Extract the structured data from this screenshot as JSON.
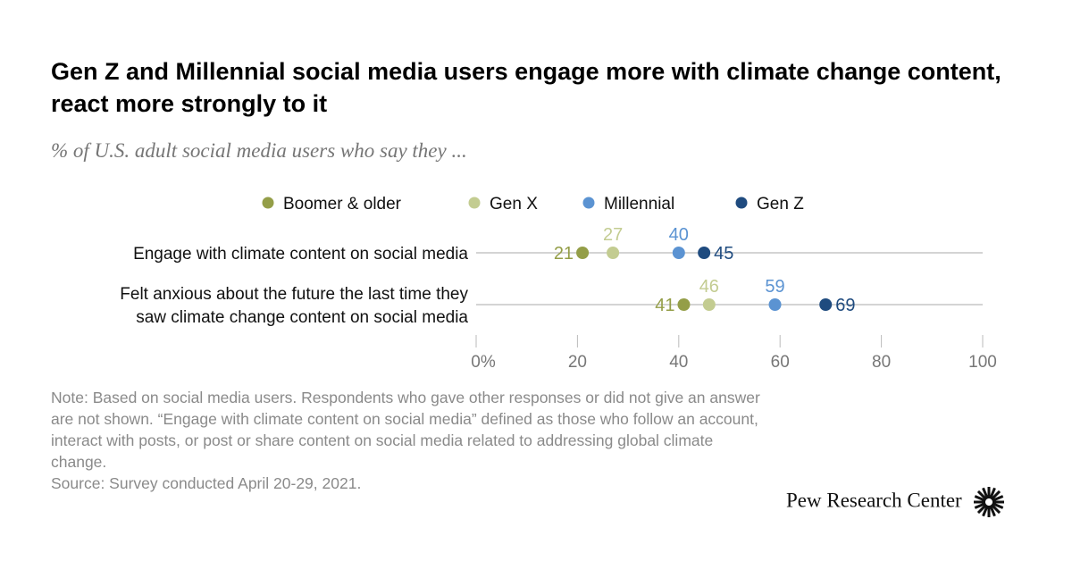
{
  "title": "Gen Z and Millennial social media users engage more with climate change content, react more strongly to it",
  "subtitle": "% of U.S. adult social media users who say they ...",
  "chart_data": {
    "type": "scatter",
    "subtype": "dot-plot",
    "categories": [
      [
        "Engage with climate content on social media"
      ],
      [
        "Felt anxious about the future the last time they",
        "saw climate change content on social media"
      ]
    ],
    "series": [
      {
        "name": "Boomer & older",
        "color": "#949e48",
        "values": [
          21,
          41
        ]
      },
      {
        "name": "Gen X",
        "color": "#c3cc91",
        "values": [
          27,
          46
        ]
      },
      {
        "name": "Millennial",
        "color": "#5b93d2",
        "values": [
          40,
          59
        ]
      },
      {
        "name": "Gen Z",
        "color": "#1f4b7f",
        "values": [
          45,
          69
        ]
      }
    ],
    "xlim": [
      0,
      100
    ],
    "xticks": [
      0,
      20,
      40,
      60,
      80,
      100
    ],
    "xtick_labels": [
      "0%",
      "20",
      "40",
      "60",
      "80",
      "100"
    ],
    "legend_position": "top"
  },
  "note": "Note: Based on social media users. Respondents who gave other responses or did not give an answer are not shown. “Engage with climate content on social media” defined as those who follow an account, interact with posts, or post or share content on social media related to addressing global climate change.",
  "source": "Source: Survey conducted April 20-29, 2021.",
  "logo": "Pew Research Center"
}
